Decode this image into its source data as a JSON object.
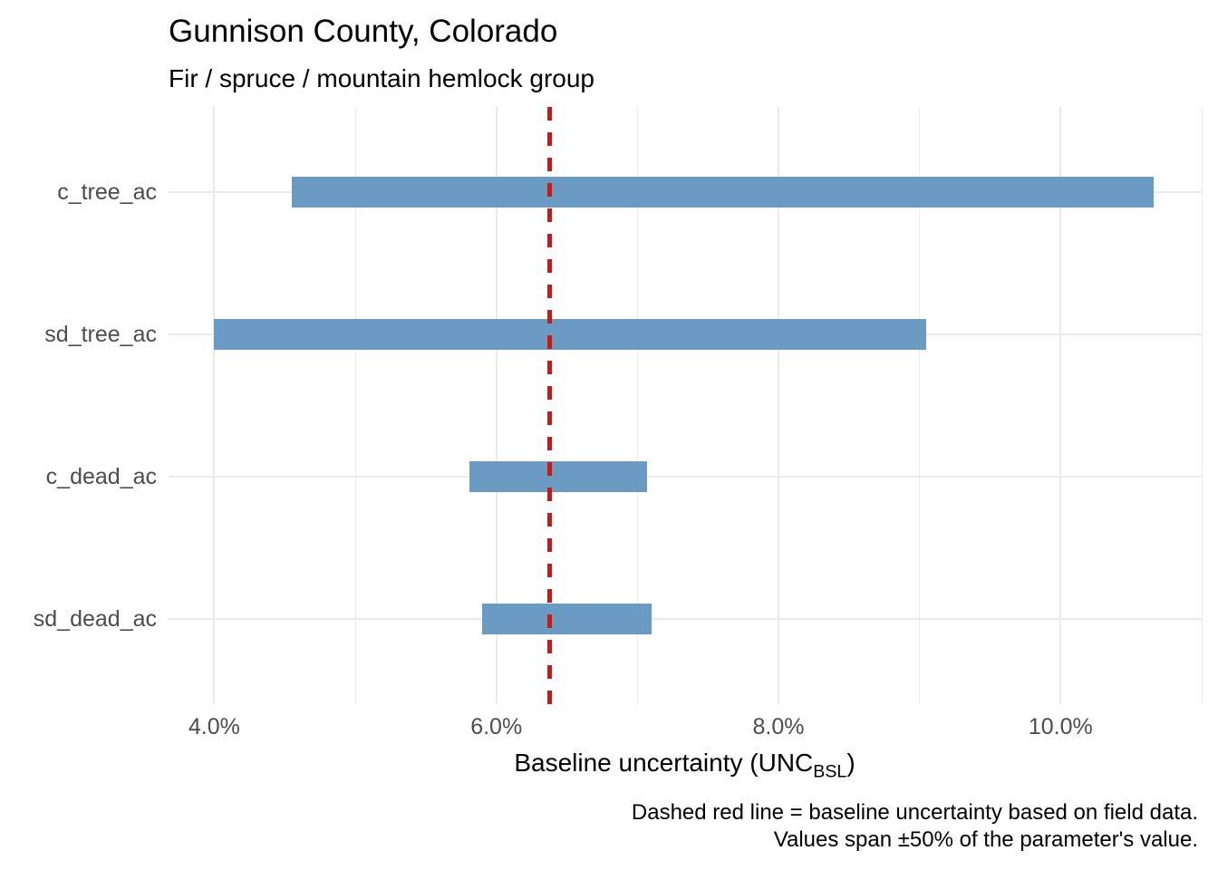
{
  "chart_data": {
    "type": "bar",
    "orientation": "horizontal-range",
    "title": "Gunnison County, Colorado",
    "subtitle": "Fir / spruce / mountain hemlock group",
    "xlabel": {
      "main": "Baseline uncertainty (UNC",
      "sub": "BSL",
      "close": ")"
    },
    "caption": [
      "Dashed red line = baseline uncertainty based on field data.",
      "Values span ±50% of the parameter's value."
    ],
    "categories": [
      "c_tree_ac",
      "sd_tree_ac",
      "c_dead_ac",
      "sd_dead_ac"
    ],
    "series": [
      {
        "name": "baseline-uncertainty-range-pct",
        "ranges": [
          [
            4.55,
            10.66
          ],
          [
            4.0,
            9.05
          ],
          [
            5.81,
            7.07
          ],
          [
            5.9,
            7.1
          ]
        ]
      }
    ],
    "baseline_x": 6.38,
    "x_ticks": [
      {
        "value": 4,
        "label": "4.0%"
      },
      {
        "value": 6,
        "label": "6.0%"
      },
      {
        "value": 8,
        "label": "8.0%"
      },
      {
        "value": 10,
        "label": "10.0%"
      }
    ],
    "x_minor_ticks": [
      5,
      7,
      9,
      11
    ],
    "xlim": [
      3.67,
      11.0
    ],
    "grid": true,
    "legend": "none",
    "colors": {
      "bar": "#6b9bc3",
      "baseline": "#b22222",
      "grid": "#ebebeb",
      "tick_text": "#4d4d4d",
      "text": "#000000"
    }
  }
}
